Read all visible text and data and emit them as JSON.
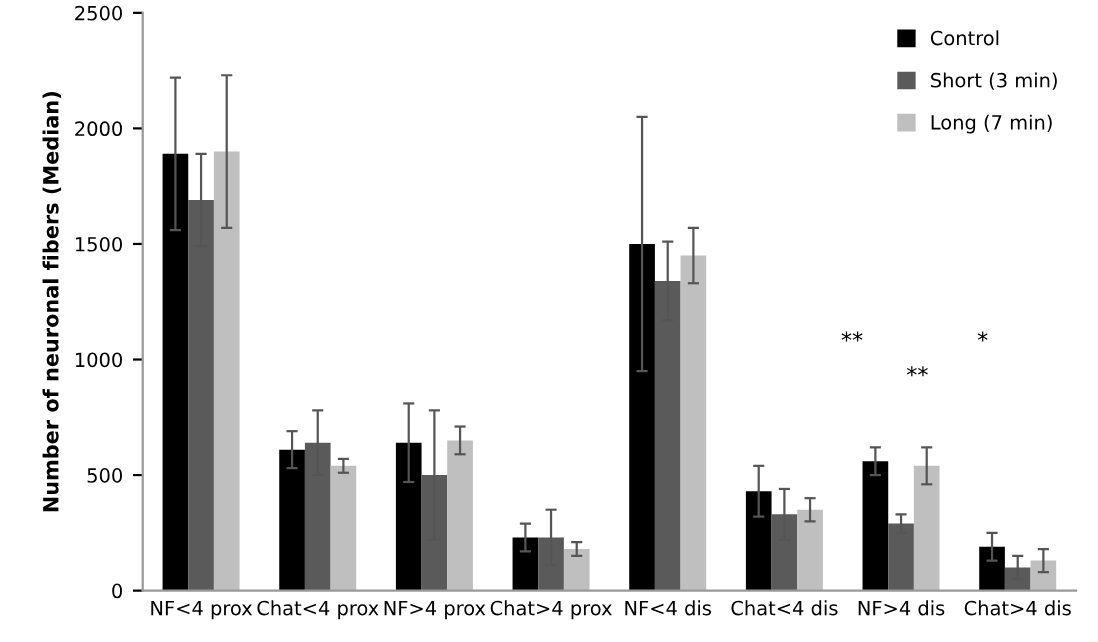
{
  "chart_data": {
    "type": "bar",
    "ylabel": "Number of neuronal fibers (Median)",
    "categories": [
      "NF<4 prox",
      "Chat<4 prox",
      "NF>4 prox",
      "Chat>4 prox",
      "NF<4 dis",
      "Chat<4 dis",
      "NF>4 dis",
      "Chat>4 dis"
    ],
    "series": [
      {
        "name": "Control",
        "color": "#000000",
        "values": [
          1890,
          610,
          640,
          230,
          1500,
          430,
          560,
          190
        ],
        "errors": [
          330,
          80,
          170,
          60,
          550,
          110,
          60,
          60
        ]
      },
      {
        "name": "Short (3 min)",
        "color": "#5a5a5a",
        "values": [
          1690,
          640,
          500,
          230,
          1340,
          330,
          290,
          100
        ],
        "errors": [
          200,
          140,
          280,
          120,
          170,
          110,
          40,
          50
        ]
      },
      {
        "name": "Long (7 min)",
        "color": "#bfbfbf",
        "values": [
          1900,
          540,
          650,
          180,
          1450,
          350,
          540,
          130
        ],
        "errors": [
          330,
          30,
          60,
          30,
          120,
          50,
          80,
          50
        ]
      }
    ],
    "ylim": [
      0,
      2500
    ],
    "yticks": [
      0,
      500,
      1000,
      1500,
      2000,
      2500
    ],
    "grid": false,
    "legend": "top right",
    "annotations": [
      "**",
      "**",
      "*"
    ]
  }
}
